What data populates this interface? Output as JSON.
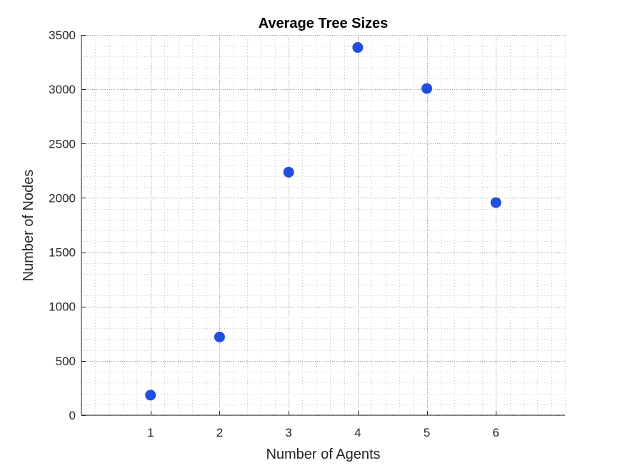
{
  "chart_data": {
    "type": "scatter",
    "title": "Average Tree Sizes",
    "xlabel": "Number of Agents",
    "ylabel": "Number of Nodes",
    "xlim": [
      0,
      7
    ],
    "ylim": [
      0,
      3500
    ],
    "xticks": [
      1,
      2,
      3,
      4,
      5,
      6
    ],
    "yticks": [
      0,
      500,
      1000,
      1500,
      2000,
      2500,
      3000,
      3500
    ],
    "grid": "on",
    "minor_grid": "on",
    "marker_color": "#1f4fdc",
    "series": [
      {
        "x": [
          1,
          2,
          3,
          4,
          5,
          6
        ],
        "y": [
          185,
          720,
          2237,
          3385,
          3007,
          1957
        ]
      }
    ]
  }
}
